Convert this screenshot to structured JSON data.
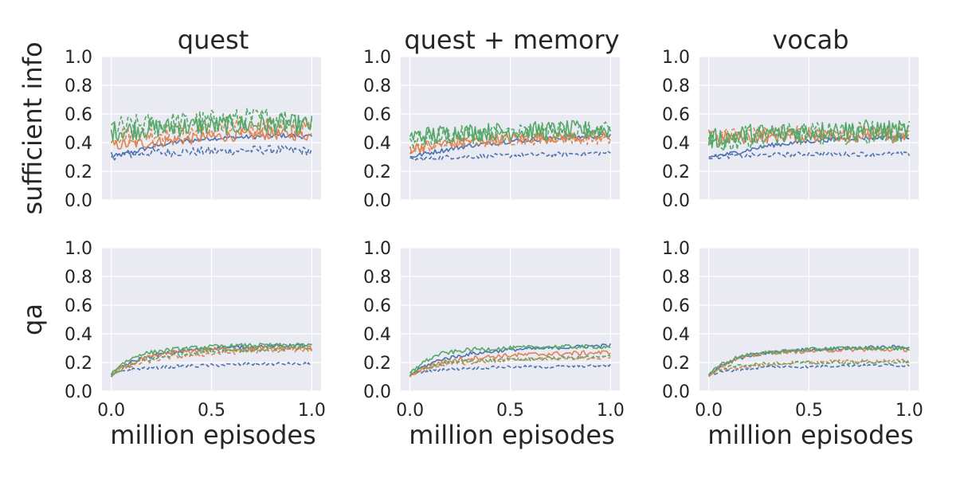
{
  "colors": {
    "blue": "#4c72b0",
    "orange": "#dd8452",
    "green": "#55a868",
    "panel_bg": "#eaeaf2",
    "text": "#262626"
  },
  "chart_data": {
    "type": "line",
    "columns": [
      "quest",
      "quest + memory",
      "vocab"
    ],
    "row_ylabels": [
      "sufficient info",
      "qa"
    ],
    "xlabel": "million episodes",
    "xlim": [
      0.0,
      1.0
    ],
    "xticks": [
      "0.0",
      "0.5",
      "1.0"
    ],
    "ylim": [
      0.0,
      1.0
    ],
    "yticks": [
      "0.0",
      "0.2",
      "0.4",
      "0.6",
      "0.8",
      "1.0"
    ],
    "grid": true,
    "legend": "none",
    "panels": [
      {
        "row": 0,
        "col": 0,
        "series": [
          {
            "color": "blue",
            "dash": "solid",
            "x": [
              0,
              0.1,
              0.2,
              0.3,
              0.5,
              0.7,
              0.85,
              1.0
            ],
            "y": [
              0.3,
              0.33,
              0.37,
              0.4,
              0.43,
              0.44,
              0.45,
              0.44
            ],
            "noise": 0.01
          },
          {
            "color": "blue",
            "dash": "dashed",
            "x": [
              0,
              0.2,
              0.5,
              0.8,
              1.0
            ],
            "y": [
              0.31,
              0.33,
              0.34,
              0.35,
              0.34
            ],
            "noise": 0.02
          },
          {
            "color": "orange",
            "dash": "solid",
            "x": [
              0,
              0.2,
              0.5,
              0.8,
              1.0
            ],
            "y": [
              0.38,
              0.4,
              0.44,
              0.46,
              0.45
            ],
            "noise": 0.025
          },
          {
            "color": "orange",
            "dash": "dashed",
            "x": [
              0,
              0.2,
              0.5,
              0.8,
              1.0
            ],
            "y": [
              0.45,
              0.46,
              0.49,
              0.51,
              0.5
            ],
            "noise": 0.04
          },
          {
            "color": "green",
            "dash": "solid",
            "x": [
              0,
              0.2,
              0.5,
              0.8,
              1.0
            ],
            "y": [
              0.48,
              0.5,
              0.52,
              0.53,
              0.52
            ],
            "noise": 0.045
          },
          {
            "color": "green",
            "dash": "dashed",
            "x": [
              0,
              0.2,
              0.5,
              0.8,
              1.0
            ],
            "y": [
              0.5,
              0.53,
              0.55,
              0.57,
              0.55
            ],
            "noise": 0.05
          }
        ]
      },
      {
        "row": 0,
        "col": 1,
        "series": [
          {
            "color": "blue",
            "dash": "solid",
            "x": [
              0,
              0.1,
              0.3,
              0.5,
              0.7,
              1.0
            ],
            "y": [
              0.3,
              0.33,
              0.38,
              0.41,
              0.43,
              0.45
            ],
            "noise": 0.01
          },
          {
            "color": "blue",
            "dash": "dashed",
            "x": [
              0,
              0.2,
              0.5,
              0.8,
              1.0
            ],
            "y": [
              0.28,
              0.3,
              0.31,
              0.32,
              0.33
            ],
            "noise": 0.01
          },
          {
            "color": "orange",
            "dash": "solid",
            "x": [
              0,
              0.2,
              0.5,
              0.8,
              1.0
            ],
            "y": [
              0.36,
              0.4,
              0.43,
              0.44,
              0.44
            ],
            "noise": 0.025
          },
          {
            "color": "orange",
            "dash": "dashed",
            "x": [
              0,
              0.2,
              0.5,
              0.8,
              1.0
            ],
            "y": [
              0.35,
              0.39,
              0.42,
              0.43,
              0.42
            ],
            "noise": 0.025
          },
          {
            "color": "green",
            "dash": "solid",
            "x": [
              0,
              0.2,
              0.5,
              0.8,
              1.0
            ],
            "y": [
              0.44,
              0.47,
              0.48,
              0.49,
              0.49
            ],
            "noise": 0.04
          },
          {
            "color": "green",
            "dash": "dashed",
            "x": [
              0,
              0.2,
              0.5,
              0.8,
              1.0
            ],
            "y": [
              0.42,
              0.45,
              0.47,
              0.48,
              0.48
            ],
            "noise": 0.04
          }
        ]
      },
      {
        "row": 0,
        "col": 2,
        "series": [
          {
            "color": "blue",
            "dash": "solid",
            "x": [
              0,
              0.1,
              0.3,
              0.5,
              0.7,
              1.0
            ],
            "y": [
              0.3,
              0.32,
              0.38,
              0.41,
              0.43,
              0.44
            ],
            "noise": 0.01
          },
          {
            "color": "blue",
            "dash": "dashed",
            "x": [
              0,
              0.2,
              0.5,
              0.8,
              1.0
            ],
            "y": [
              0.3,
              0.31,
              0.32,
              0.32,
              0.32
            ],
            "noise": 0.01
          },
          {
            "color": "orange",
            "dash": "solid",
            "x": [
              0,
              0.2,
              0.5,
              0.8,
              1.0
            ],
            "y": [
              0.42,
              0.44,
              0.45,
              0.45,
              0.44
            ],
            "noise": 0.03
          },
          {
            "color": "orange",
            "dash": "dashed",
            "x": [
              0,
              0.2,
              0.5,
              0.8,
              1.0
            ],
            "y": [
              0.46,
              0.47,
              0.47,
              0.47,
              0.46
            ],
            "noise": 0.03
          },
          {
            "color": "green",
            "dash": "solid",
            "x": [
              0,
              0.2,
              0.5,
              0.8,
              1.0
            ],
            "y": [
              0.42,
              0.46,
              0.48,
              0.49,
              0.48
            ],
            "noise": 0.045
          },
          {
            "color": "green",
            "dash": "dashed",
            "x": [
              0,
              0.2,
              0.5,
              0.8,
              1.0
            ],
            "y": [
              0.38,
              0.44,
              0.46,
              0.47,
              0.47
            ],
            "noise": 0.05
          }
        ]
      },
      {
        "row": 1,
        "col": 0,
        "series": [
          {
            "color": "blue",
            "dash": "solid",
            "x": [
              0,
              0.05,
              0.15,
              0.3,
              0.5,
              0.7,
              1.0
            ],
            "y": [
              0.11,
              0.17,
              0.23,
              0.27,
              0.3,
              0.31,
              0.32
            ],
            "noise": 0.008
          },
          {
            "color": "blue",
            "dash": "dashed",
            "x": [
              0,
              0.05,
              0.15,
              0.3,
              0.5,
              0.7,
              1.0
            ],
            "y": [
              0.11,
              0.14,
              0.16,
              0.17,
              0.18,
              0.19,
              0.19
            ],
            "noise": 0.007
          },
          {
            "color": "orange",
            "dash": "solid",
            "x": [
              0,
              0.05,
              0.15,
              0.3,
              0.5,
              0.7,
              1.0
            ],
            "y": [
              0.11,
              0.16,
              0.22,
              0.27,
              0.29,
              0.3,
              0.3
            ],
            "noise": 0.01
          },
          {
            "color": "orange",
            "dash": "dashed",
            "x": [
              0,
              0.05,
              0.15,
              0.3,
              0.5,
              0.7,
              1.0
            ],
            "y": [
              0.11,
              0.15,
              0.2,
              0.24,
              0.26,
              0.28,
              0.29
            ],
            "noise": 0.01
          },
          {
            "color": "green",
            "dash": "solid",
            "x": [
              0,
              0.05,
              0.15,
              0.3,
              0.5,
              0.7,
              1.0
            ],
            "y": [
              0.12,
              0.19,
              0.26,
              0.29,
              0.31,
              0.32,
              0.32
            ],
            "noise": 0.009
          },
          {
            "color": "green",
            "dash": "dashed",
            "x": [
              0,
              0.05,
              0.15,
              0.3,
              0.5,
              0.7,
              1.0
            ],
            "y": [
              0.11,
              0.15,
              0.21,
              0.25,
              0.28,
              0.29,
              0.3
            ],
            "noise": 0.01
          }
        ]
      },
      {
        "row": 1,
        "col": 1,
        "series": [
          {
            "color": "blue",
            "dash": "solid",
            "x": [
              0,
              0.05,
              0.15,
              0.3,
              0.5,
              0.7,
              1.0
            ],
            "y": [
              0.11,
              0.16,
              0.22,
              0.26,
              0.29,
              0.3,
              0.32
            ],
            "noise": 0.008
          },
          {
            "color": "blue",
            "dash": "dashed",
            "x": [
              0,
              0.05,
              0.15,
              0.3,
              0.5,
              0.7,
              1.0
            ],
            "y": [
              0.11,
              0.13,
              0.15,
              0.16,
              0.17,
              0.17,
              0.18
            ],
            "noise": 0.006
          },
          {
            "color": "orange",
            "dash": "solid",
            "x": [
              0,
              0.05,
              0.15,
              0.3,
              0.5,
              0.7,
              1.0
            ],
            "y": [
              0.11,
              0.15,
              0.2,
              0.23,
              0.25,
              0.26,
              0.27
            ],
            "noise": 0.01
          },
          {
            "color": "orange",
            "dash": "dashed",
            "x": [
              0,
              0.05,
              0.15,
              0.3,
              0.5,
              0.7,
              1.0
            ],
            "y": [
              0.11,
              0.14,
              0.18,
              0.2,
              0.22,
              0.23,
              0.23
            ],
            "noise": 0.008
          },
          {
            "color": "green",
            "dash": "solid",
            "x": [
              0,
              0.05,
              0.15,
              0.3,
              0.5,
              0.7,
              1.0
            ],
            "y": [
              0.12,
              0.19,
              0.26,
              0.29,
              0.3,
              0.31,
              0.31
            ],
            "noise": 0.009
          },
          {
            "color": "green",
            "dash": "dashed",
            "x": [
              0,
              0.05,
              0.15,
              0.3,
              0.5,
              0.7,
              1.0
            ],
            "y": [
              0.11,
              0.15,
              0.19,
              0.21,
              0.22,
              0.23,
              0.24
            ],
            "noise": 0.008
          }
        ]
      },
      {
        "row": 1,
        "col": 2,
        "series": [
          {
            "color": "blue",
            "dash": "solid",
            "x": [
              0,
              0.05,
              0.15,
              0.3,
              0.5,
              0.7,
              1.0
            ],
            "y": [
              0.11,
              0.17,
              0.23,
              0.27,
              0.29,
              0.3,
              0.31
            ],
            "noise": 0.008
          },
          {
            "color": "blue",
            "dash": "dashed",
            "x": [
              0,
              0.05,
              0.15,
              0.3,
              0.5,
              0.7,
              1.0
            ],
            "y": [
              0.11,
              0.13,
              0.15,
              0.17,
              0.17,
              0.18,
              0.18
            ],
            "noise": 0.006
          },
          {
            "color": "orange",
            "dash": "solid",
            "x": [
              0,
              0.05,
              0.15,
              0.3,
              0.5,
              0.7,
              1.0
            ],
            "y": [
              0.11,
              0.17,
              0.23,
              0.27,
              0.28,
              0.29,
              0.29
            ],
            "noise": 0.009
          },
          {
            "color": "orange",
            "dash": "dashed",
            "x": [
              0,
              0.05,
              0.15,
              0.3,
              0.5,
              0.7,
              1.0
            ],
            "y": [
              0.11,
              0.14,
              0.17,
              0.19,
              0.2,
              0.21,
              0.21
            ],
            "noise": 0.008
          },
          {
            "color": "green",
            "dash": "solid",
            "x": [
              0,
              0.05,
              0.15,
              0.3,
              0.5,
              0.7,
              1.0
            ],
            "y": [
              0.12,
              0.18,
              0.24,
              0.27,
              0.29,
              0.3,
              0.3
            ],
            "noise": 0.009
          },
          {
            "color": "green",
            "dash": "dashed",
            "x": [
              0,
              0.05,
              0.15,
              0.3,
              0.5,
              0.7,
              1.0
            ],
            "y": [
              0.11,
              0.15,
              0.18,
              0.19,
              0.2,
              0.2,
              0.2
            ],
            "noise": 0.008
          }
        ]
      }
    ]
  }
}
